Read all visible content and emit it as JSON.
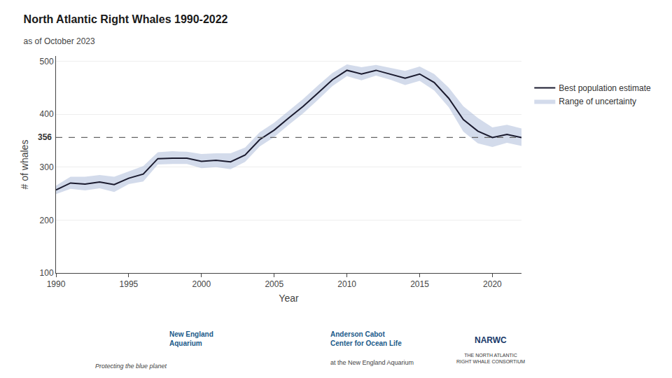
{
  "chart_data": {
    "type": "line",
    "title": "North Atlantic Right Whales 1990-2022",
    "subtitle": "as of October 2023",
    "x_label": "Year",
    "y_label": "# of whales",
    "x": [
      1990,
      1991,
      1992,
      1993,
      1994,
      1995,
      1996,
      1997,
      1998,
      1999,
      2000,
      2001,
      2002,
      2003,
      2004,
      2005,
      2006,
      2007,
      2008,
      2009,
      2010,
      2011,
      2012,
      2013,
      2014,
      2015,
      2016,
      2017,
      2018,
      2019,
      2020,
      2021,
      2022
    ],
    "series": [
      {
        "name": "Best population estimate",
        "color": "#1a1a2e",
        "values": [
          257,
          270,
          268,
          272,
          267,
          279,
          287,
          316,
          317,
          317,
          311,
          313,
          310,
          323,
          352,
          370,
          393,
          415,
          440,
          465,
          483,
          476,
          483,
          476,
          468,
          476,
          460,
          430,
          390,
          368,
          356,
          362,
          356
        ]
      }
    ],
    "band": {
      "name": "Range of uncertainty",
      "color": "#a8b8d8",
      "upper": [
        265,
        282,
        282,
        285,
        282,
        292,
        302,
        328,
        330,
        329,
        325,
        326,
        326,
        337,
        366,
        384,
        407,
        429,
        454,
        478,
        494,
        489,
        493,
        488,
        482,
        490,
        476,
        450,
        415,
        393,
        375,
        380,
        373
      ],
      "lower": [
        249,
        259,
        256,
        260,
        253,
        268,
        273,
        305,
        306,
        306,
        298,
        300,
        296,
        310,
        339,
        357,
        380,
        402,
        427,
        453,
        472,
        464,
        473,
        465,
        455,
        463,
        445,
        413,
        367,
        345,
        338,
        346,
        340
      ]
    },
    "reference_line": {
      "value": 356,
      "color": "#666666",
      "line_style": "dashed"
    },
    "xlim": [
      1990,
      2022
    ],
    "xticks": [
      1990,
      1995,
      2000,
      2005,
      2010,
      2015,
      2020
    ],
    "ylim": [
      100,
      510
    ],
    "yticks": [
      100,
      200,
      300,
      400,
      500
    ],
    "grid": "y",
    "legend": "right",
    "annotations": [
      "New England\nAquarium",
      "Protecting the blue planet",
      "Anderson Cabot\nCenter for Ocean Life",
      "at the New England Aquarium",
      "NARWC",
      "THE NORTH ATLANTIC\nRIGHT WHALE CONSORTIUM"
    ]
  }
}
